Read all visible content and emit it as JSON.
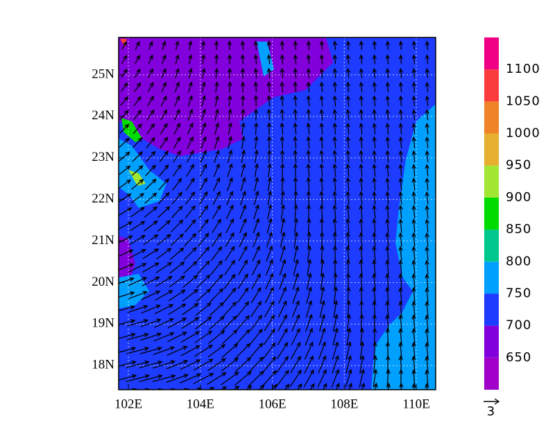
{
  "map": {
    "xlim": [
      101.73,
      110.54
    ],
    "ylim": [
      17.42,
      25.9
    ],
    "xticks": [
      {
        "value": 102,
        "label": "102E"
      },
      {
        "value": 104,
        "label": "104E"
      },
      {
        "value": 106,
        "label": "106E"
      },
      {
        "value": 108,
        "label": "108E"
      },
      {
        "value": 110,
        "label": "110E"
      }
    ],
    "yticks": [
      {
        "value": 18,
        "label": "18N"
      },
      {
        "value": 19,
        "label": "19N"
      },
      {
        "value": 20,
        "label": "20N"
      },
      {
        "value": 21,
        "label": "21N"
      },
      {
        "value": 22,
        "label": "22N"
      },
      {
        "value": 23,
        "label": "23N"
      },
      {
        "value": 24,
        "label": "24N"
      },
      {
        "value": 25,
        "label": "25N"
      }
    ],
    "grid": true,
    "colorbar": {
      "levels": [
        650,
        700,
        750,
        800,
        850,
        900,
        950,
        1000,
        1050,
        1100
      ],
      "colors": [
        "#a000c8",
        "#8200dc",
        "#1e3cff",
        "#00a0ff",
        "#00c88c",
        "#00dc00",
        "#a0e632",
        "#e6af2d",
        "#f08228",
        "#fa3c3c",
        "#f00082"
      ]
    },
    "reference_vector": {
      "value": 3
    }
  }
}
